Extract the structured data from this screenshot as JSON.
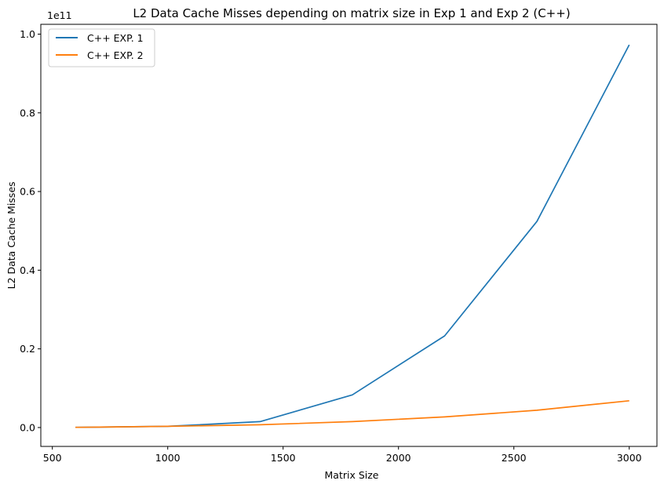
{
  "chart_data": {
    "type": "line",
    "title": "L2 Data Cache Misses depending on matrix size in Exp 1 and Exp 2 (C++)",
    "xlabel": "Matrix Size",
    "ylabel": "L2 Data Cache Misses",
    "offset_text": "1e11",
    "xlim": [
      450,
      3120
    ],
    "ylim": [
      -0.048,
      1.025
    ],
    "xticks": [
      500,
      1000,
      1500,
      2000,
      2500,
      3000
    ],
    "xtick_labels": [
      "500",
      "1000",
      "1500",
      "2000",
      "2500",
      "3000"
    ],
    "yticks": [
      0.0,
      0.2,
      0.4,
      0.6,
      0.8,
      1.0
    ],
    "ytick_labels": [
      "0.0",
      "0.2",
      "0.4",
      "0.6",
      "0.8",
      "1.0"
    ],
    "legend_position": "top-left",
    "grid": false,
    "x": [
      600,
      1000,
      1400,
      1800,
      2200,
      2600,
      3000
    ],
    "series": [
      {
        "name": "C++ EXP. 1",
        "color": "#1f77b4",
        "values": [
          0.0005,
          0.003,
          0.015,
          0.083,
          0.233,
          0.524,
          0.973
        ]
      },
      {
        "name": "C++ EXP. 2",
        "color": "#ff7f0e",
        "values": [
          0.0005,
          0.003,
          0.007,
          0.015,
          0.027,
          0.044,
          0.068
        ]
      }
    ]
  }
}
